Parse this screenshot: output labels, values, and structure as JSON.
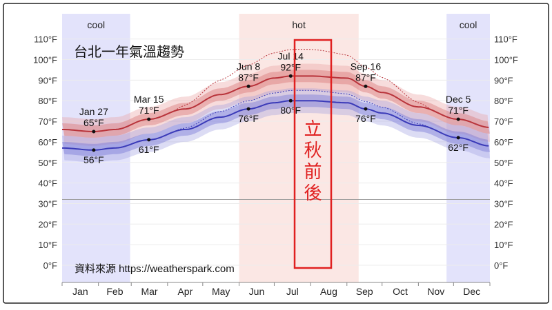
{
  "chart_data": {
    "type": "area",
    "title": "台北一年氣溫趨勢",
    "source": "資料來源 https://weatherspark.com",
    "annotation": "立秋前後",
    "annotation_chars": [
      "立",
      "秋",
      "前",
      "後"
    ],
    "ylim": [
      -5,
      115
    ],
    "y_ticks": [
      {
        "v": 110,
        "label": "110°F"
      },
      {
        "v": 100,
        "label": "100°F"
      },
      {
        "v": 90,
        "label": "90°F"
      },
      {
        "v": 80,
        "label": "80°F"
      },
      {
        "v": 70,
        "label": "70°F"
      },
      {
        "v": 60,
        "label": "60°F"
      },
      {
        "v": 50,
        "label": "50°F"
      },
      {
        "v": 40,
        "label": "40°F"
      },
      {
        "v": 30,
        "label": "30°F"
      },
      {
        "v": 20,
        "label": "20°F"
      },
      {
        "v": 10,
        "label": "10°F"
      },
      {
        "v": 0,
        "label": "0°F"
      }
    ],
    "months": [
      "Jan",
      "Feb",
      "Mar",
      "Apr",
      "May",
      "Jun",
      "Jul",
      "Aug",
      "Sep",
      "Oct",
      "Nov",
      "Dec"
    ],
    "freezing_line": 32,
    "seasons": [
      {
        "label": "cool",
        "start": 0,
        "end": 58,
        "color": "#e3e3fb"
      },
      {
        "label": "hot",
        "start": 151,
        "end": 253,
        "color": "#fbe7e4"
      },
      {
        "label": "cool",
        "start": 328,
        "end": 365,
        "color": "#e3e3fb"
      }
    ],
    "series": [
      {
        "key": "high",
        "color": "#b8333a",
        "x": [
          0,
          27,
          45,
          74,
          105,
          135,
          159,
          181,
          195,
          212,
          243,
          259,
          273,
          304,
          338,
          365
        ],
        "values": [
          66,
          65,
          66,
          71,
          76,
          83,
          87,
          91,
          92,
          92,
          91,
          87,
          84,
          77,
          71,
          67
        ]
      },
      {
        "key": "low",
        "color": "#3a3ab8",
        "x": [
          0,
          27,
          45,
          74,
          105,
          135,
          159,
          181,
          195,
          212,
          243,
          259,
          273,
          304,
          338,
          365
        ],
        "values": [
          57,
          56,
          57,
          61,
          66,
          72,
          76,
          79,
          80,
          80,
          79,
          76,
          74,
          68,
          62,
          58
        ]
      }
    ],
    "callouts": [
      {
        "x": 27,
        "date": "Jan 27",
        "high": "65°F",
        "low": "56°F",
        "hv": 65,
        "lv": 56
      },
      {
        "x": 74,
        "date": "Mar 15",
        "high": "71°F",
        "low": "61°F",
        "hv": 71,
        "lv": 61
      },
      {
        "x": 159,
        "date": "Jun 8",
        "high": "87°F",
        "low": "76°F",
        "hv": 87,
        "lv": 76
      },
      {
        "x": 195,
        "date": "Jul 14",
        "high": "92°F",
        "low": "80°F",
        "hv": 92,
        "lv": 80
      },
      {
        "x": 259,
        "date": "Sep 16",
        "high": "87°F",
        "low": "76°F",
        "hv": 87,
        "lv": 76
      },
      {
        "x": 338,
        "date": "Dec 5",
        "high": "71°F",
        "low": "62°F",
        "hv": 71,
        "lv": 62
      }
    ]
  }
}
